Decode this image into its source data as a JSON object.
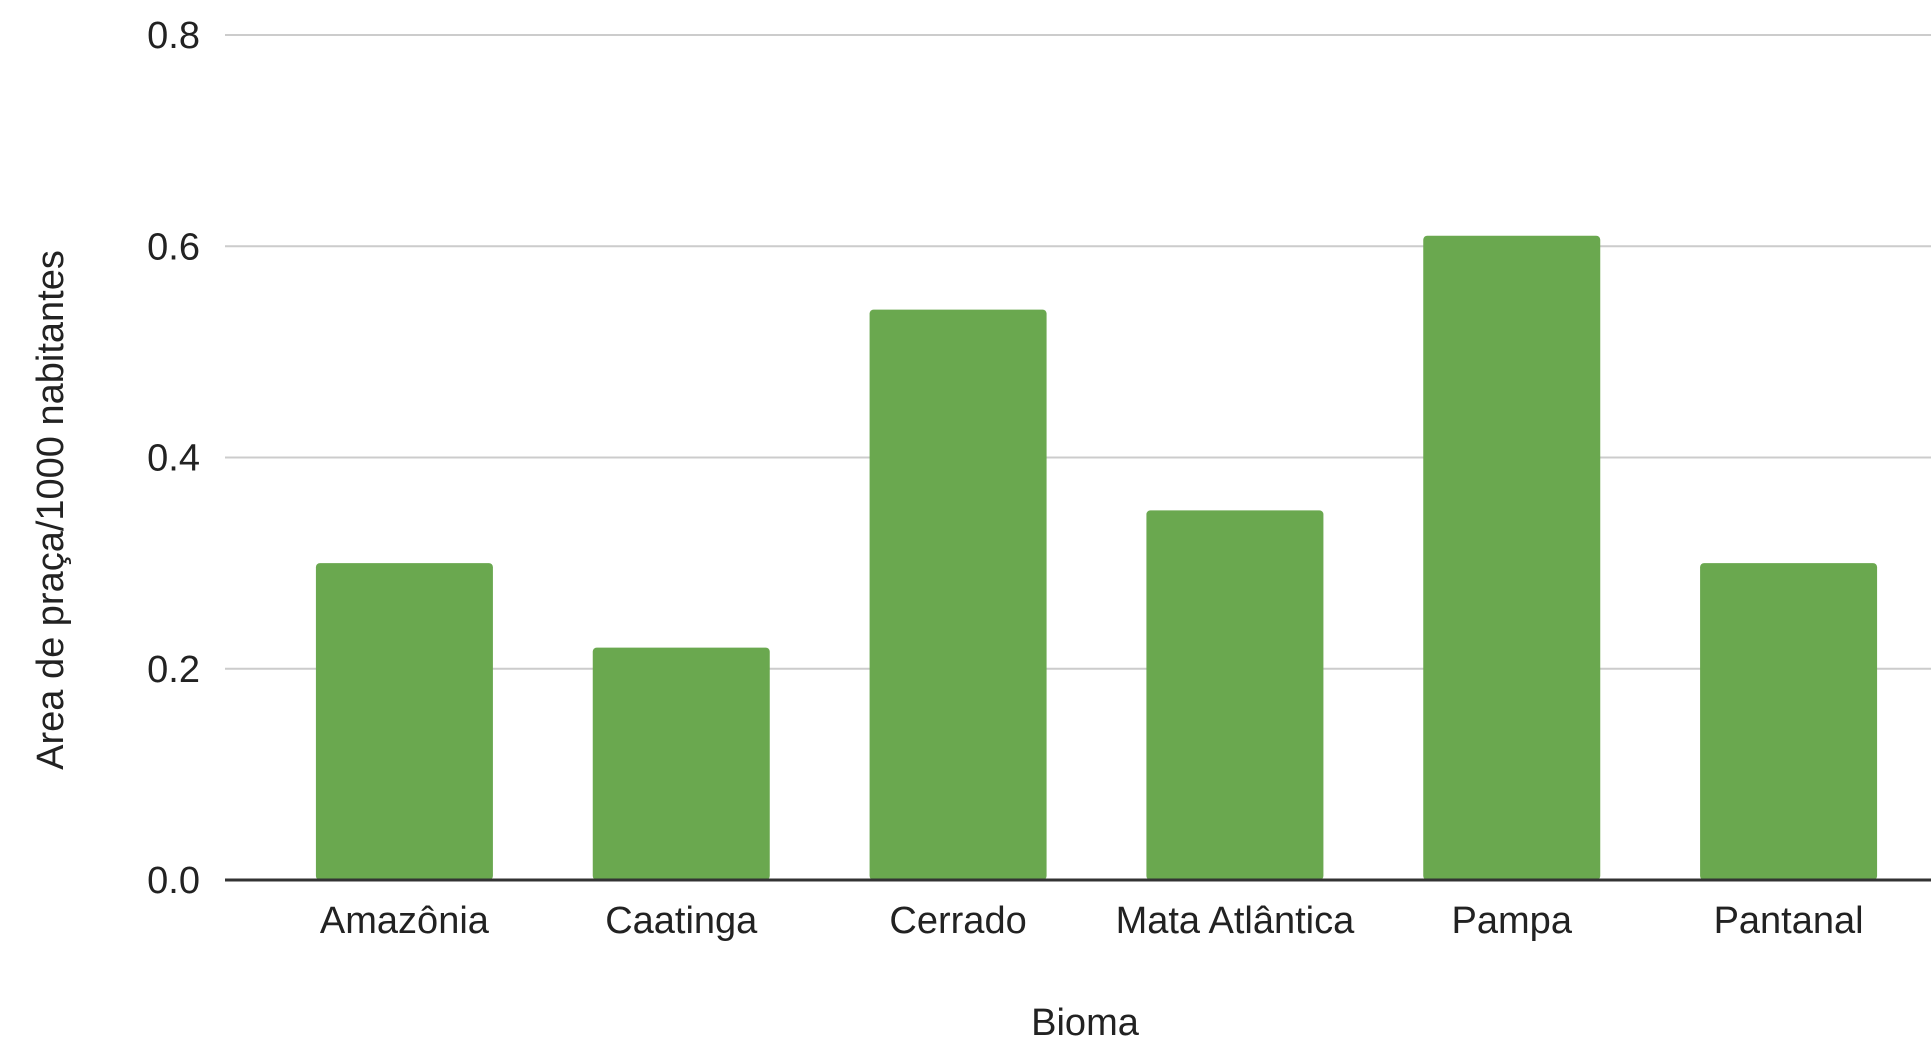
{
  "chart_data": {
    "type": "bar",
    "title": "",
    "xlabel": "Bioma",
    "ylabel": "Area de praça/1000 nabitantes",
    "categories": [
      "Amazônia",
      "Caatinga",
      "Cerrado",
      "Mata Atlântica",
      "Pampa",
      "Pantanal"
    ],
    "series": [
      {
        "values": [
          0.3,
          0.22,
          0.54,
          0.35,
          0.61,
          0.3
        ]
      }
    ],
    "ylim": [
      0,
      0.8
    ],
    "yticks": [
      "0.0",
      "0.2",
      "0.4",
      "0.6",
      "0.8"
    ],
    "grid": true,
    "legend": "none",
    "colors": {
      "bar": "#6aa84f",
      "grid": "#cccccc",
      "baseline": "#333333",
      "text": "#222222"
    }
  }
}
